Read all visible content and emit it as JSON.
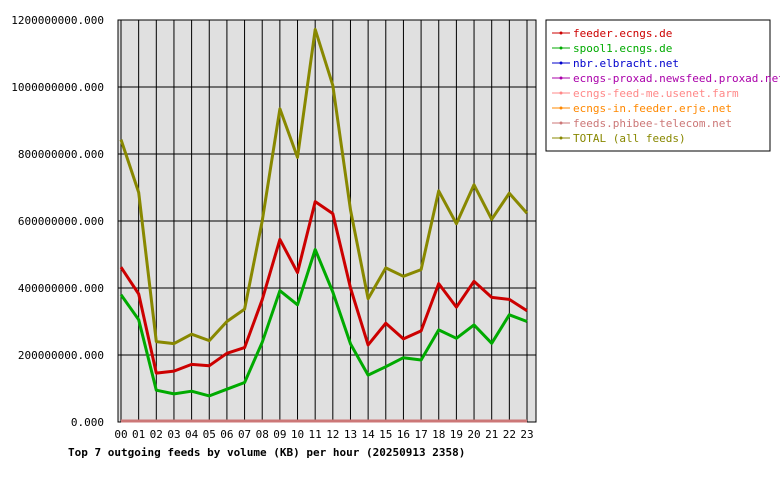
{
  "chart_data": {
    "type": "line",
    "title": "Top 7 outgoing feeds by volume (KB) per hour (20250913 2358)",
    "xlabel": "",
    "ylabel": "",
    "categories": [
      "00",
      "01",
      "02",
      "03",
      "04",
      "05",
      "06",
      "07",
      "08",
      "09",
      "10",
      "11",
      "12",
      "13",
      "14",
      "15",
      "16",
      "17",
      "18",
      "19",
      "20",
      "21",
      "22",
      "23"
    ],
    "ylim": [
      0,
      1200000000
    ],
    "yticks": [
      0,
      200000000,
      400000000,
      600000000,
      800000000,
      1000000000,
      1200000000
    ],
    "ytick_labels": [
      "0.000",
      "200000000.000",
      "400000000.000",
      "600000000.000",
      "800000000.000",
      "1000000000.000",
      "1200000000.000"
    ],
    "grid": true,
    "legend_position": "top-right",
    "series": [
      {
        "name": "feeder.ecngs.de",
        "color": "#cc0000",
        "values": [
          462000000,
          382000000,
          146000000,
          152000000,
          172000000,
          168000000,
          205000000,
          222000000,
          365000000,
          545000000,
          446000000,
          658000000,
          622000000,
          400000000,
          230000000,
          295000000,
          248000000,
          272000000,
          413000000,
          343000000,
          420000000,
          372000000,
          366000000,
          332000000
        ]
      },
      {
        "name": "spool1.ecngs.de",
        "color": "#00aa00",
        "values": [
          380000000,
          305000000,
          95000000,
          84000000,
          92000000,
          78000000,
          98000000,
          118000000,
          238000000,
          392000000,
          350000000,
          515000000,
          388000000,
          233000000,
          140000000,
          165000000,
          192000000,
          185000000,
          275000000,
          250000000,
          290000000,
          235000000,
          320000000,
          300000000
        ]
      },
      {
        "name": "nbr.elbracht.net",
        "color": "#0000cc",
        "values": [
          3000000,
          3000000,
          3000000,
          3000000,
          3000000,
          3000000,
          3000000,
          3000000,
          3000000,
          3000000,
          3000000,
          3000000,
          3000000,
          3000000,
          3000000,
          3000000,
          3000000,
          3000000,
          3000000,
          3000000,
          3000000,
          3000000,
          3000000,
          3000000
        ]
      },
      {
        "name": "ecngs-proxad.newsfeed.proxad.net",
        "color": "#aa00aa",
        "values": [
          3000000,
          3000000,
          3000000,
          3000000,
          3000000,
          3000000,
          3000000,
          3000000,
          3000000,
          3000000,
          3000000,
          3000000,
          3000000,
          3000000,
          3000000,
          3000000,
          3000000,
          3000000,
          3000000,
          3000000,
          3000000,
          3000000,
          3000000,
          3000000
        ]
      },
      {
        "name": "ecngs-feed-me.usenet.farm",
        "color": "#ff8888",
        "values": [
          3000000,
          3000000,
          3000000,
          3000000,
          3000000,
          3000000,
          3000000,
          3000000,
          3000000,
          3000000,
          3000000,
          3000000,
          3000000,
          3000000,
          3000000,
          3000000,
          3000000,
          3000000,
          3000000,
          3000000,
          3000000,
          3000000,
          3000000,
          3000000
        ]
      },
      {
        "name": "ecngs-in.feeder.erje.net",
        "color": "#ff8800",
        "values": [
          3000000,
          3000000,
          3000000,
          3000000,
          3000000,
          3000000,
          3000000,
          3000000,
          3000000,
          3000000,
          3000000,
          3000000,
          3000000,
          3000000,
          3000000,
          3000000,
          3000000,
          3000000,
          3000000,
          3000000,
          3000000,
          3000000,
          3000000,
          3000000
        ]
      },
      {
        "name": "feeds.phibee-telecom.net",
        "color": "#cc7777",
        "values": [
          3000000,
          3000000,
          3000000,
          3000000,
          3000000,
          3000000,
          3000000,
          3000000,
          3000000,
          3000000,
          3000000,
          3000000,
          3000000,
          3000000,
          3000000,
          3000000,
          3000000,
          3000000,
          3000000,
          3000000,
          3000000,
          3000000,
          3000000,
          3000000
        ]
      },
      {
        "name": "TOTAL (all feeds)",
        "color": "#888800",
        "values": [
          843000000,
          685000000,
          240000000,
          234000000,
          262000000,
          243000000,
          300000000,
          337000000,
          600000000,
          935000000,
          790000000,
          1172000000,
          1005000000,
          633000000,
          368000000,
          460000000,
          435000000,
          455000000,
          690000000,
          592000000,
          708000000,
          605000000,
          683000000,
          623000000
        ]
      }
    ]
  }
}
